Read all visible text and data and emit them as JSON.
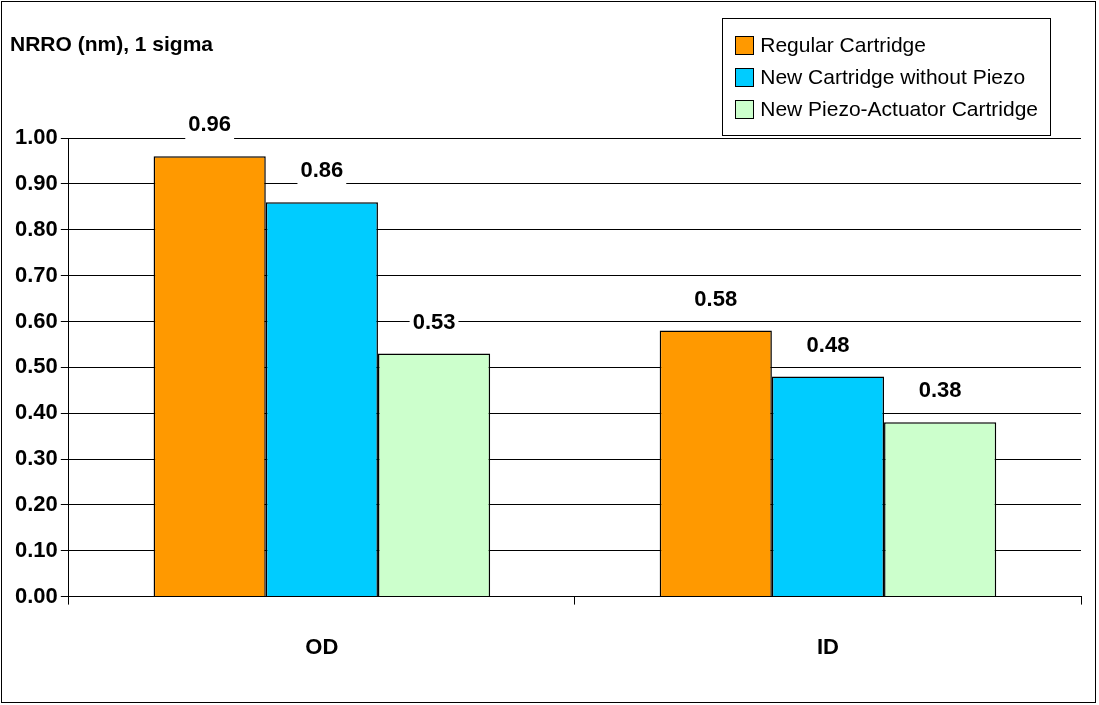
{
  "chart_data": {
    "type": "bar",
    "ylabel": "NRRO (nm), 1 sigma",
    "categories": [
      "OD",
      "ID"
    ],
    "series": [
      {
        "name": "Regular Cartridge",
        "color": "#ff9900",
        "values": [
          0.96,
          0.58
        ]
      },
      {
        "name": "New Cartridge without Piezo",
        "color": "#00ccff",
        "values": [
          0.86,
          0.48
        ]
      },
      {
        "name": "New Piezo-Actuator Cartridge",
        "color": "#ccffcc",
        "values": [
          0.53,
          0.38
        ]
      }
    ],
    "ylim": [
      0,
      1
    ],
    "yticks": [
      {
        "value": 0,
        "label": "0.00"
      },
      {
        "value": 0.1,
        "label": "0.10"
      },
      {
        "value": 0.2,
        "label": "0.20"
      },
      {
        "value": 0.3,
        "label": "0.30"
      },
      {
        "value": 0.4,
        "label": "0.40"
      },
      {
        "value": 0.5,
        "label": "0.50"
      },
      {
        "value": 0.6,
        "label": "0.60"
      },
      {
        "value": 0.7,
        "label": "0.70"
      },
      {
        "value": 0.8,
        "label": "0.80"
      },
      {
        "value": 0.9,
        "label": "0.90"
      },
      {
        "value": 1,
        "label": "1.00"
      }
    ],
    "grid": "y",
    "legend": "top right",
    "data_labels": true
  }
}
